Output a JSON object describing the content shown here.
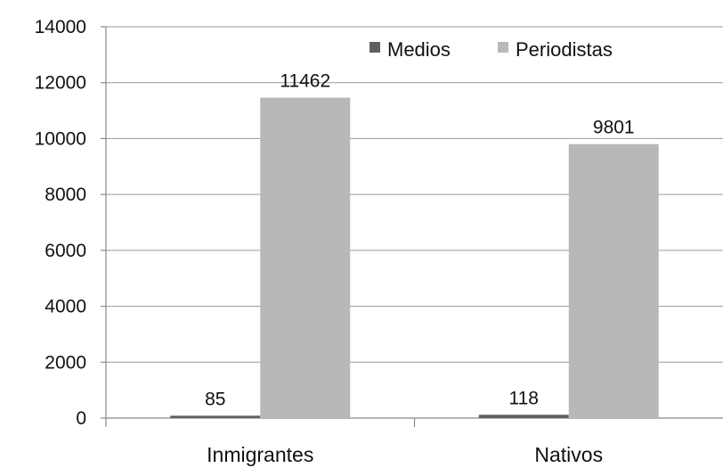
{
  "chart_data": {
    "type": "bar",
    "title": "",
    "xlabel": "",
    "ylabel": "",
    "ylim": [
      0,
      14000
    ],
    "yticks": [
      "0",
      "2000",
      "4000",
      "6000",
      "8000",
      "10000",
      "12000",
      "14000"
    ],
    "categories": [
      "Inmigrantes",
      "Nativos"
    ],
    "series": [
      {
        "name": "Medios",
        "values": [
          85,
          118
        ],
        "color": "#5f5f5f"
      },
      {
        "name": "Periodistas",
        "values": [
          11462,
          9801
        ],
        "color": "#b8b8b8"
      }
    ],
    "data_labels": [
      [
        "85",
        "118"
      ],
      [
        "11462",
        "9801"
      ]
    ],
    "grid": true,
    "legend_position": "top-right"
  }
}
